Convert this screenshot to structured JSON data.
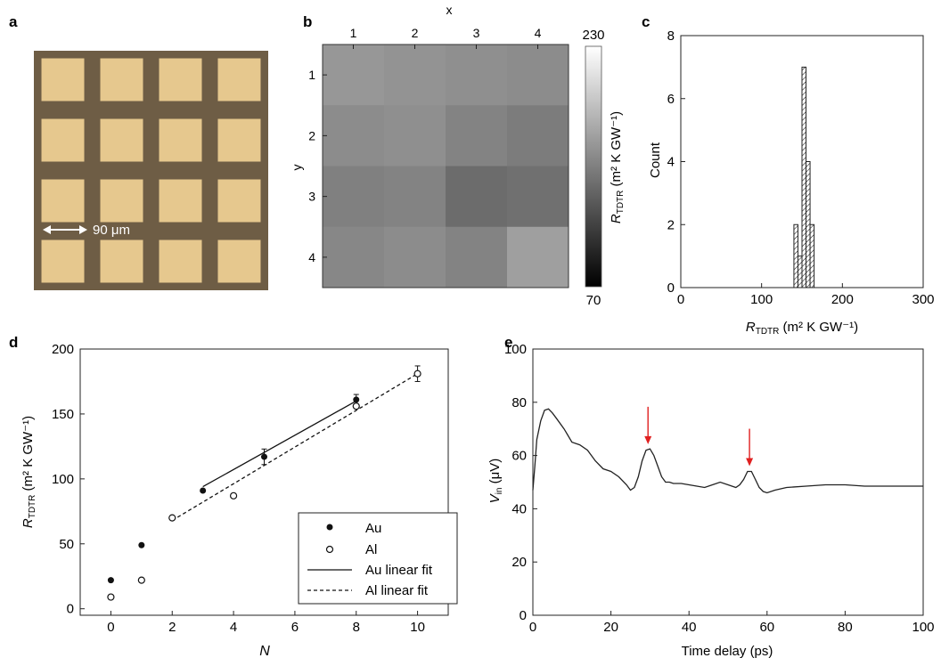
{
  "panels": [
    {
      "letter": "a"
    },
    {
      "letter": "b"
    },
    {
      "letter": "c"
    },
    {
      "letter": "d"
    },
    {
      "letter": "e"
    }
  ],
  "micrograph": {
    "scale_label": "90 μm",
    "pad_rows": 4,
    "pad_cols": 4,
    "colors": {
      "background": "#6e5d45",
      "pad": "#e6c88e"
    }
  },
  "chart_data": [
    {
      "panel": "b",
      "type": "heatmap",
      "xlabel": "x",
      "ylabel": "y",
      "x_ticks": [
        "1",
        "2",
        "3",
        "4"
      ],
      "y_ticks": [
        "1",
        "2",
        "3",
        "4"
      ],
      "values": [
        [
          165,
          162,
          160,
          158
        ],
        [
          158,
          160,
          152,
          148
        ],
        [
          150,
          152,
          138,
          140
        ],
        [
          155,
          158,
          152,
          170
        ]
      ],
      "colorbar": {
        "label_main": "R",
        "label_sub": "TDTR",
        "label_rest": " (m² K GW⁻¹)",
        "min": 70,
        "max": 230,
        "min_label": "70",
        "max_label": "230"
      }
    },
    {
      "panel": "c",
      "type": "bar",
      "xlabel_main": "R",
      "xlabel_sub": "TDTR",
      "xlabel_rest": " (m² K GW⁻¹)",
      "ylabel": "Count",
      "xlim": [
        0,
        300
      ],
      "ylim": [
        0,
        8
      ],
      "x_ticks": [
        0,
        100,
        200,
        300
      ],
      "y_ticks": [
        0,
        2,
        4,
        6,
        8
      ],
      "bins": [
        {
          "x0": 140,
          "x1": 145,
          "count": 2
        },
        {
          "x0": 145,
          "x1": 150,
          "count": 1
        },
        {
          "x0": 150,
          "x1": 155,
          "count": 7
        },
        {
          "x0": 155,
          "x1": 160,
          "count": 4
        },
        {
          "x0": 160,
          "x1": 165,
          "count": 2
        }
      ]
    },
    {
      "panel": "d",
      "type": "scatter",
      "xlabel": "N",
      "ylabel_main": "R",
      "ylabel_sub": "TDTR",
      "ylabel_rest": " (m² K GW⁻¹)",
      "xlim": [
        -1,
        11
      ],
      "ylim": [
        -5,
        200
      ],
      "x_ticks": [
        0,
        2,
        4,
        6,
        8,
        10
      ],
      "y_ticks": [
        0,
        50,
        100,
        150,
        200
      ],
      "series": [
        {
          "name": "Au",
          "marker": "filled",
          "points": [
            {
              "x": 0,
              "y": 22
            },
            {
              "x": 1,
              "y": 49
            },
            {
              "x": 3,
              "y": 91
            },
            {
              "x": 5,
              "y": 117,
              "err": 6
            },
            {
              "x": 8,
              "y": 161,
              "err": 4
            }
          ]
        },
        {
          "name": "Al",
          "marker": "open",
          "points": [
            {
              "x": 0,
              "y": 9
            },
            {
              "x": 1,
              "y": 22
            },
            {
              "x": 2,
              "y": 70
            },
            {
              "x": 4,
              "y": 87
            },
            {
              "x": 8,
              "y": 156
            },
            {
              "x": 10,
              "y": 181,
              "err": 6
            }
          ]
        }
      ],
      "fits": [
        {
          "name": "Au linear fit",
          "style": "solid",
          "x": [
            3,
            8
          ],
          "y": [
            94,
            160
          ]
        },
        {
          "name": "Al linear fit",
          "style": "dashed",
          "x": [
            2,
            10
          ],
          "y": [
            68,
            181
          ]
        }
      ],
      "legend_position": "bottom-right"
    },
    {
      "panel": "e",
      "type": "line",
      "xlabel": "Time delay (ps)",
      "ylabel_main": "V",
      "ylabel_sub": "in",
      "ylabel_rest": " (μV)",
      "xlim": [
        0,
        100
      ],
      "ylim": [
        0,
        100
      ],
      "x_ticks": [
        0,
        20,
        40,
        60,
        80,
        100
      ],
      "y_ticks": [
        0,
        20,
        40,
        60,
        80,
        100
      ],
      "x": [
        0,
        0.5,
        1,
        2,
        3,
        4,
        5,
        6,
        8,
        10,
        12,
        14,
        16,
        18,
        20,
        22,
        24,
        25,
        26,
        27,
        28,
        29,
        30,
        31,
        32,
        33,
        34,
        35,
        36,
        38,
        40,
        42,
        44,
        46,
        48,
        50,
        52,
        53,
        54,
        55,
        56,
        57,
        58,
        59,
        60,
        62,
        65,
        70,
        75,
        80,
        85,
        90,
        95,
        100
      ],
      "y": [
        47,
        56,
        66,
        73,
        77,
        77.5,
        76,
        74,
        70,
        65,
        64,
        62,
        58,
        55,
        54,
        52,
        49,
        47,
        48,
        52,
        58,
        62,
        62.5,
        60,
        56,
        52,
        50,
        50,
        49.5,
        49.5,
        49,
        48.5,
        48,
        49,
        50,
        49,
        48,
        49,
        51,
        54,
        54,
        51,
        48,
        46.5,
        46,
        47,
        48,
        48.5,
        49,
        49,
        48.5,
        48.5,
        48.5,
        48.5
      ],
      "arrows_at_x": [
        29.5,
        55.5
      ],
      "arrow_color": "#e02020"
    }
  ]
}
